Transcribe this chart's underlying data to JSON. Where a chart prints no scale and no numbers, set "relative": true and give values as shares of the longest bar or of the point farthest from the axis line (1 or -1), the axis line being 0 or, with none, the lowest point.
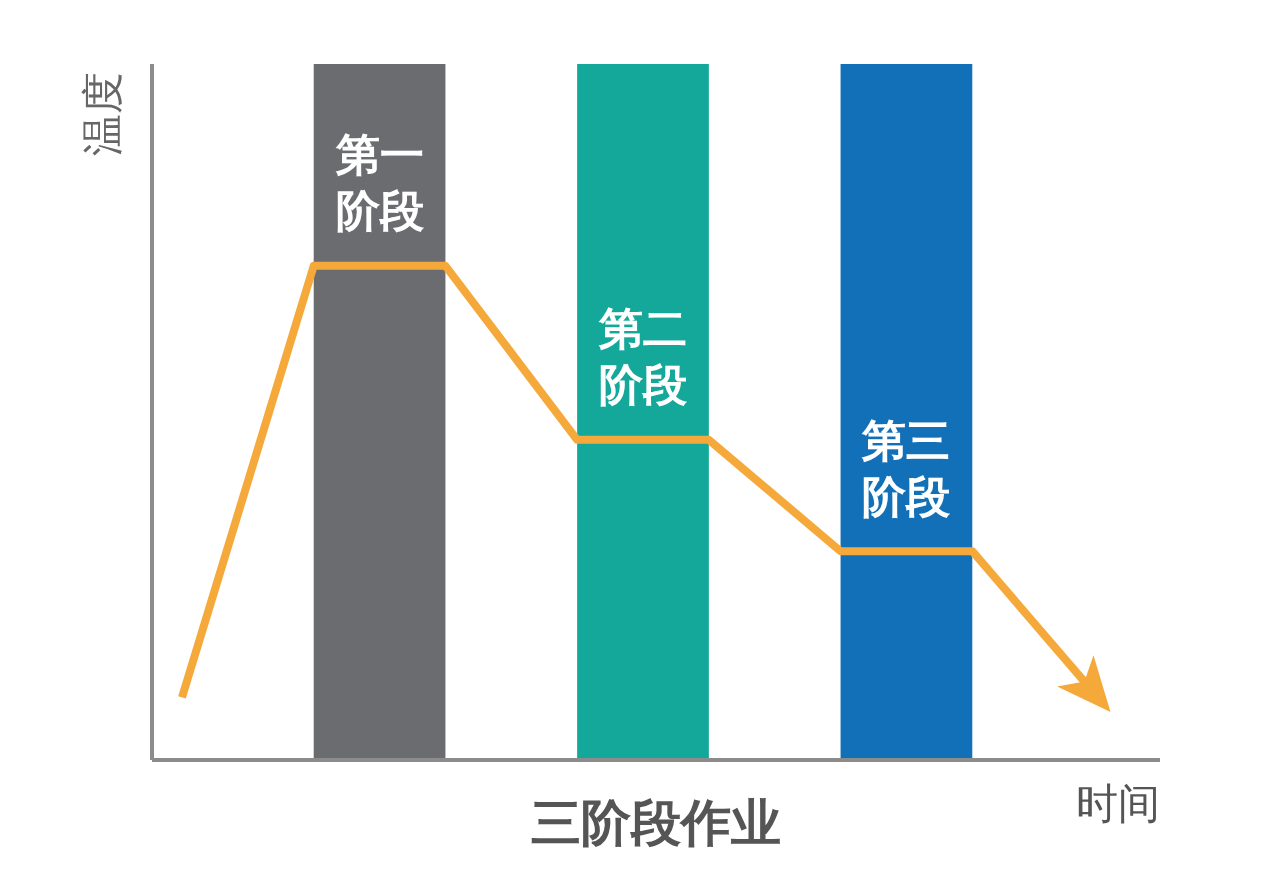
{
  "chart_data": {
    "type": "line",
    "title": "三阶段作业",
    "xlabel": "时间",
    "ylabel": "温度",
    "categories": [
      null,
      null,
      null,
      null,
      null,
      null,
      null,
      null
    ],
    "relative": true,
    "line_style": "solid",
    "series": [
      {
        "type": "area",
        "name": "第一阶段",
        "color": "#6b6c70",
        "values": [
          null,
          1,
          1,
          null,
          null,
          null,
          null,
          null
        ]
      },
      {
        "type": "area",
        "name": "第二阶段",
        "color": "#13a89a",
        "values": [
          null,
          null,
          null,
          1,
          1,
          null,
          null,
          null
        ]
      },
      {
        "type": "area",
        "name": "第三阶段",
        "color": "#1270b8",
        "values": [
          null,
          null,
          null,
          null,
          null,
          1,
          1,
          null
        ]
      },
      {
        "color": "#f5a93a",
        "values": [
          0.09,
          0.71,
          0.71,
          0.46,
          0.46,
          0.3,
          0.3,
          0.08
        ]
      }
    ]
  }
}
